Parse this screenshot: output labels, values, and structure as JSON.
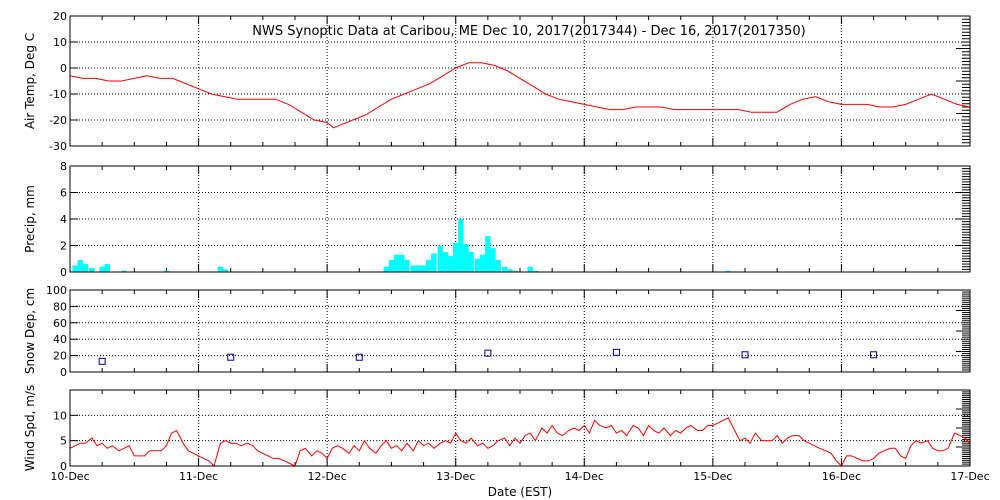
{
  "title": "NWS Synoptic Data at Caribou, ME    Dec 10, 2017(2017344) - Dec 16, 2017(2017350)",
  "xlabel": "Date (EST)",
  "x_ticks": [
    "10-Dec",
    "11-Dec",
    "12-Dec",
    "13-Dec",
    "14-Dec",
    "15-Dec",
    "16-Dec",
    "17-Dec"
  ],
  "colors": {
    "temp": "#ff0000",
    "precip": "#00ffff",
    "snow": "#00008b",
    "wind": "#ff0000"
  },
  "chart_data": [
    {
      "type": "line",
      "name": "air-temp",
      "ylabel": "Air Temp, Deg C",
      "ylim": [
        -30,
        20
      ],
      "yticks": [
        -30,
        -20,
        -10,
        0,
        10,
        20
      ],
      "grid": true,
      "x_unit": "days since 10-Dec 00:00 EST",
      "x": [
        0,
        0.1,
        0.2,
        0.3,
        0.4,
        0.5,
        0.6,
        0.7,
        0.8,
        0.9,
        1.0,
        1.1,
        1.2,
        1.3,
        1.4,
        1.5,
        1.6,
        1.7,
        1.8,
        1.9,
        2.0,
        2.05,
        2.1,
        2.2,
        2.3,
        2.4,
        2.5,
        2.6,
        2.7,
        2.8,
        2.9,
        3.0,
        3.1,
        3.2,
        3.3,
        3.4,
        3.5,
        3.6,
        3.7,
        3.8,
        3.9,
        4.0,
        4.1,
        4.2,
        4.3,
        4.4,
        4.5,
        4.6,
        4.7,
        4.8,
        4.9,
        5.0,
        5.1,
        5.2,
        5.3,
        5.4,
        5.5,
        5.6,
        5.7,
        5.8,
        5.9,
        6.0,
        6.1,
        6.2,
        6.3,
        6.4,
        6.5,
        6.6,
        6.7,
        6.8,
        6.9,
        7.0
      ],
      "y": [
        -3,
        -4,
        -4,
        -5,
        -5,
        -4,
        -3,
        -4,
        -4,
        -6,
        -8,
        -10,
        -11,
        -12,
        -12,
        -12,
        -12,
        -14,
        -17,
        -20,
        -21,
        -23,
        -22,
        -20,
        -18,
        -15,
        -12,
        -10,
        -8,
        -6,
        -3,
        0,
        2,
        2,
        1,
        -1,
        -4,
        -7,
        -10,
        -12,
        -13,
        -14,
        -15,
        -16,
        -16,
        -15,
        -15,
        -15,
        -16,
        -16,
        -16,
        -16,
        -16,
        -16,
        -17,
        -17,
        -17,
        -14,
        -12,
        -11,
        -13,
        -14,
        -14,
        -14,
        -15,
        -15,
        -14,
        -12,
        -10,
        -12,
        -14,
        -15
      ]
    },
    {
      "type": "bar",
      "name": "precip",
      "ylabel": "Precip, mm",
      "ylim": [
        0,
        8
      ],
      "yticks": [
        0,
        2,
        4,
        6,
        8
      ],
      "grid": true,
      "bin_width": 0.042,
      "x": [
        0.04,
        0.08,
        0.12,
        0.17,
        0.25,
        0.29,
        0.42,
        0.75,
        1.17,
        1.21,
        2.46,
        2.5,
        2.54,
        2.58,
        2.62,
        2.67,
        2.71,
        2.75,
        2.79,
        2.83,
        2.88,
        2.92,
        2.96,
        3.0,
        3.04,
        3.08,
        3.12,
        3.17,
        3.21,
        3.25,
        3.29,
        3.33,
        3.38,
        3.42,
        3.46,
        3.58,
        3.62,
        5.12
      ],
      "values": [
        0.5,
        0.9,
        0.6,
        0.3,
        0.4,
        0.6,
        0.1,
        0.1,
        0.4,
        0.2,
        0.4,
        0.9,
        1.3,
        1.3,
        0.9,
        0.5,
        0.5,
        0.5,
        0.9,
        1.4,
        2.0,
        1.5,
        1.2,
        2.2,
        4.0,
        2.1,
        1.5,
        1.0,
        1.3,
        2.7,
        1.8,
        0.9,
        0.4,
        0.2,
        0.1,
        0.4,
        0.1,
        0.1
      ]
    },
    {
      "type": "scatter",
      "name": "snow-depth",
      "ylabel": "Snow Dep, cm",
      "ylim": [
        0,
        100
      ],
      "yticks": [
        0,
        20,
        40,
        60,
        80,
        100
      ],
      "grid": true,
      "x": [
        0.25,
        1.25,
        2.25,
        3.25,
        4.25,
        5.25,
        6.25
      ],
      "y": [
        13,
        18,
        18,
        23,
        24,
        21,
        21
      ]
    },
    {
      "type": "line",
      "name": "wind-speed",
      "ylabel": "Wind Spd, m/s",
      "ylim": [
        0,
        15
      ],
      "yticks": [
        0,
        5,
        10
      ],
      "grid": true,
      "x": [
        0,
        0.04,
        0.08,
        0.12,
        0.17,
        0.21,
        0.25,
        0.29,
        0.33,
        0.38,
        0.42,
        0.46,
        0.5,
        0.54,
        0.58,
        0.62,
        0.67,
        0.71,
        0.75,
        0.79,
        0.83,
        0.88,
        0.92,
        0.96,
        1.0,
        1.04,
        1.08,
        1.12,
        1.17,
        1.21,
        1.25,
        1.29,
        1.33,
        1.38,
        1.42,
        1.46,
        1.5,
        1.54,
        1.58,
        1.62,
        1.67,
        1.71,
        1.75,
        1.79,
        1.83,
        1.88,
        1.92,
        1.96,
        2.0,
        2.04,
        2.08,
        2.12,
        2.17,
        2.21,
        2.25,
        2.29,
        2.33,
        2.38,
        2.42,
        2.46,
        2.5,
        2.54,
        2.58,
        2.62,
        2.67,
        2.71,
        2.75,
        2.79,
        2.83,
        2.88,
        2.92,
        2.96,
        3.0,
        3.04,
        3.08,
        3.12,
        3.17,
        3.21,
        3.25,
        3.29,
        3.33,
        3.38,
        3.42,
        3.46,
        3.5,
        3.54,
        3.58,
        3.62,
        3.67,
        3.71,
        3.75,
        3.79,
        3.83,
        3.88,
        3.92,
        3.96,
        4.0,
        4.04,
        4.08,
        4.12,
        4.17,
        4.21,
        4.25,
        4.29,
        4.33,
        4.38,
        4.42,
        4.46,
        4.5,
        4.54,
        4.58,
        4.62,
        4.67,
        4.71,
        4.75,
        4.79,
        4.83,
        4.88,
        4.92,
        4.96,
        5.0,
        5.04,
        5.08,
        5.12,
        5.17,
        5.21,
        5.25,
        5.29,
        5.33,
        5.38,
        5.42,
        5.46,
        5.5,
        5.54,
        5.58,
        5.62,
        5.67,
        5.71,
        5.75,
        5.79,
        5.83,
        5.88,
        5.92,
        5.96,
        6.0,
        6.04,
        6.08,
        6.12,
        6.17,
        6.21,
        6.25,
        6.29,
        6.33,
        6.38,
        6.42,
        6.46,
        6.5,
        6.54,
        6.58,
        6.62,
        6.67,
        6.71,
        6.75,
        6.79,
        6.83,
        6.88,
        6.92,
        6.96,
        7.0
      ],
      "y": [
        3.5,
        4,
        4.5,
        4.5,
        5.5,
        4,
        4.5,
        3.5,
        4,
        3,
        3.5,
        4,
        2,
        2,
        2,
        3,
        3,
        3,
        4,
        6.5,
        7,
        4.5,
        3,
        2.5,
        2,
        1.5,
        1,
        0,
        4.5,
        5,
        4.5,
        4.5,
        4,
        4.5,
        4,
        3,
        2.5,
        2,
        1.5,
        1.5,
        1,
        0.5,
        0,
        3,
        3.5,
        2,
        3,
        2.5,
        1.5,
        3.5,
        4,
        3.5,
        2.5,
        4,
        3,
        5,
        3.5,
        2.5,
        4,
        5,
        3.5,
        4,
        3,
        4.5,
        3,
        5,
        4,
        4.5,
        3.5,
        4.5,
        5,
        4.5,
        6.5,
        5,
        4.5,
        5.5,
        4,
        4.5,
        3.5,
        4,
        5,
        5.5,
        4,
        5.5,
        4.5,
        6,
        6.5,
        5,
        7.5,
        6.5,
        8,
        6.5,
        6,
        7,
        7.5,
        7,
        8,
        6.5,
        9,
        8,
        7.5,
        8,
        6.5,
        7,
        6,
        8,
        7.5,
        6,
        8,
        7,
        6.5,
        7.5,
        6,
        7,
        6.5,
        7.5,
        8,
        7,
        7,
        8,
        8,
        8.5,
        9,
        9.5,
        7,
        5,
        5.5,
        4.5,
        6.5,
        5,
        5,
        5,
        6,
        4.5,
        5.5,
        6,
        6,
        5,
        4.5,
        4,
        3.5,
        3,
        2.5,
        1,
        0,
        2,
        2,
        1.5,
        1,
        1,
        1.5,
        2.5,
        3,
        3.5,
        3.5,
        2,
        1.5,
        4,
        5,
        4.5,
        5,
        3.5,
        3,
        3,
        3.5,
        6.5,
        6,
        5.5,
        4.5
      ]
    }
  ]
}
